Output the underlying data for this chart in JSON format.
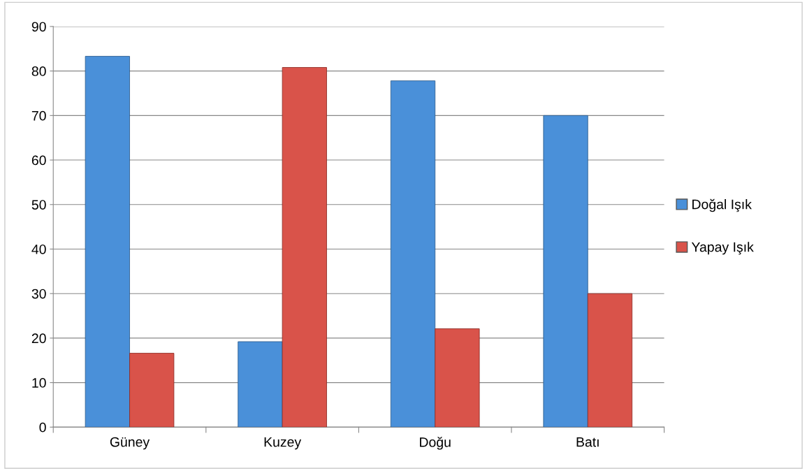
{
  "chart_data": {
    "type": "bar",
    "categories": [
      "Güney",
      "Kuzey",
      "Doğu",
      "Batı"
    ],
    "series": [
      {
        "name": "Doğal Işık",
        "color": "#4a90d9",
        "values": [
          83.3,
          19.2,
          77.8,
          70
        ]
      },
      {
        "name": "Yapay Işık",
        "color": "#d9534a",
        "values": [
          16.6,
          80.8,
          22.1,
          30
        ]
      }
    ],
    "ylim": [
      0,
      90
    ],
    "yticks": [
      0,
      10,
      20,
      30,
      40,
      50,
      60,
      70,
      80,
      90
    ],
    "grid": "y",
    "legend": "right"
  }
}
